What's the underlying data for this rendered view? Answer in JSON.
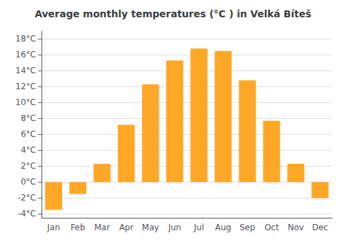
{
  "chart_data": {
    "type": "bar",
    "title": "Average monthly temperatures (°C ) in Velká Bíteš",
    "categories": [
      "Jan",
      "Feb",
      "Mar",
      "Apr",
      "May",
      "Jun",
      "Jul",
      "Aug",
      "Sep",
      "Oct",
      "Nov",
      "Dec"
    ],
    "values": [
      -3.5,
      -1.5,
      2.3,
      7.2,
      12.3,
      15.3,
      16.8,
      16.5,
      12.8,
      7.7,
      2.3,
      -2.0
    ],
    "color": "#FFA726",
    "ylim": [
      -4.5,
      19
    ],
    "yticks": [
      {
        "value": -4,
        "label": "-4°C"
      },
      {
        "value": -2,
        "label": "-2°C"
      },
      {
        "value": 0,
        "label": "0°C"
      },
      {
        "value": 2,
        "label": "2°C"
      },
      {
        "value": 4,
        "label": "4°C"
      },
      {
        "value": 6,
        "label": "6°C"
      },
      {
        "value": 8,
        "label": "8°C"
      },
      {
        "value": 10,
        "label": "10°C"
      },
      {
        "value": 12,
        "label": "12°C"
      },
      {
        "value": 14,
        "label": "14°C"
      },
      {
        "value": 16,
        "label": "16°C"
      },
      {
        "value": 18,
        "label": "18°C"
      }
    ],
    "grid": true
  }
}
